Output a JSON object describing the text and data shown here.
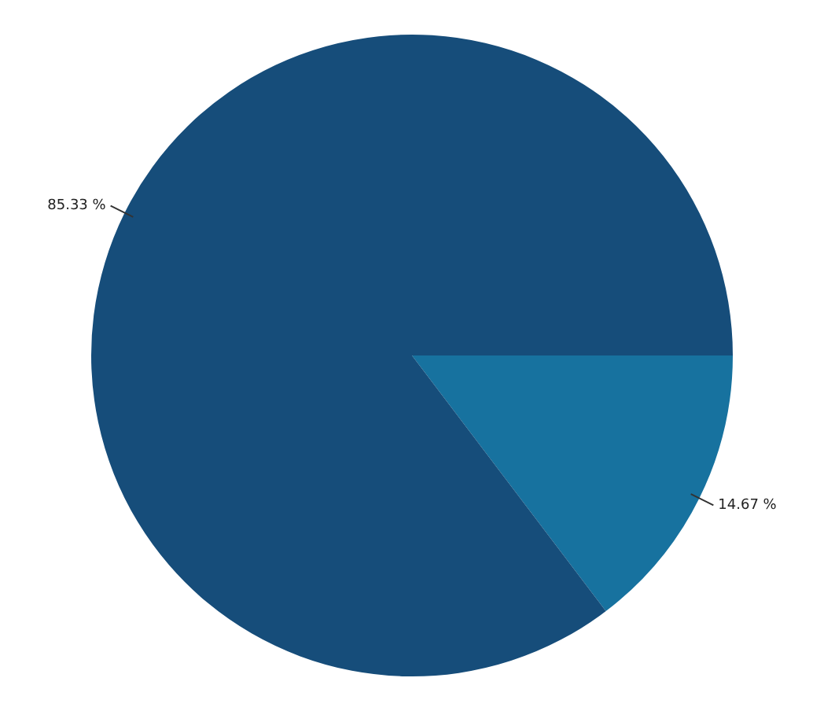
{
  "chart_data": {
    "type": "pie",
    "categories": [
      null,
      null
    ],
    "values": [
      14.67,
      85.33
    ],
    "colors": [
      "#17729f",
      "#164d7a"
    ],
    "value_labels": [
      "14.67 %",
      "85.33 %"
    ],
    "legend": false
  }
}
